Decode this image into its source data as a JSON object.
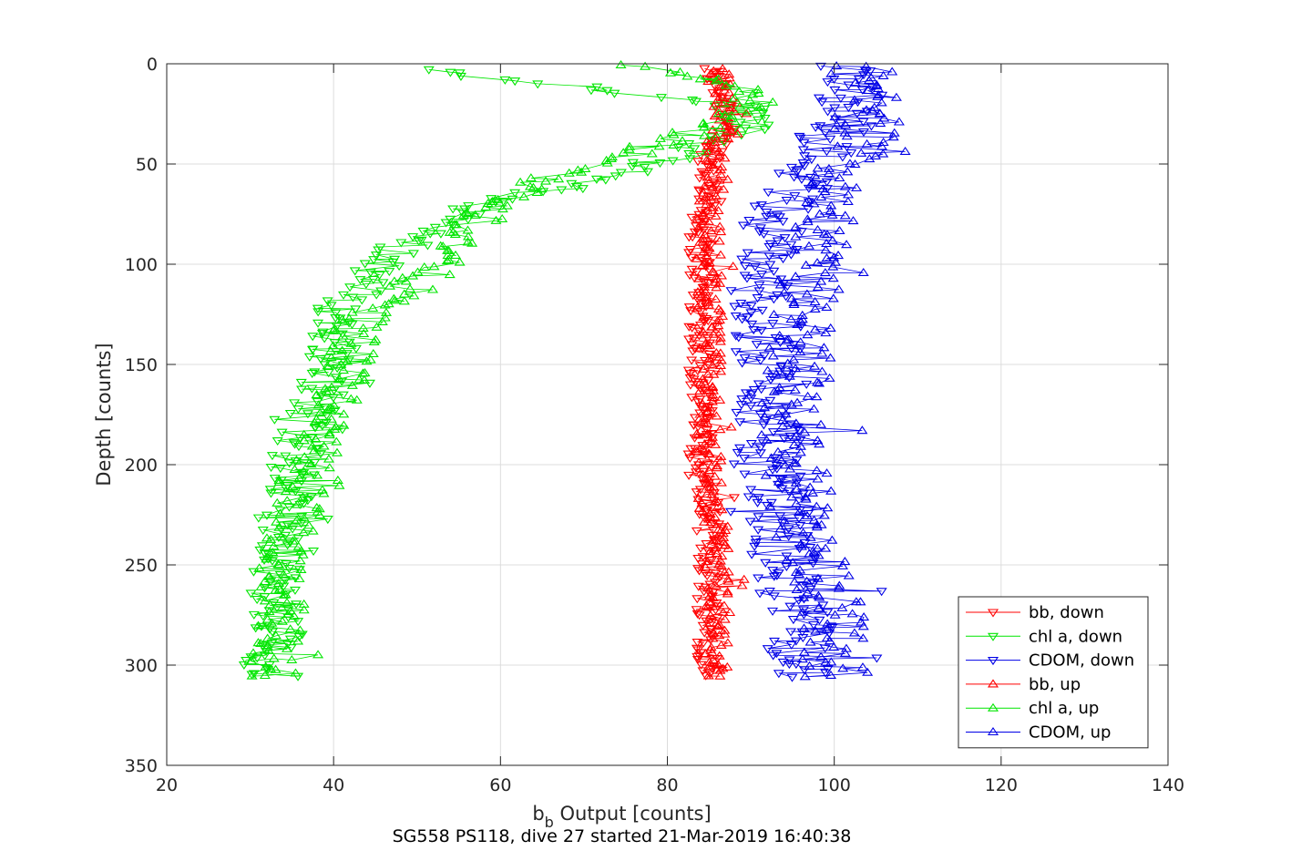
{
  "chart_data": {
    "type": "line",
    "title": "SG558 PS118, dive 27 started 21-Mar-2019 16:40:38",
    "xlabel_main": "b",
    "xlabel_sub": "b",
    "xlabel_rest": " Output [counts]",
    "ylabel": "Depth [counts]",
    "xlim": [
      20,
      140
    ],
    "ylim": [
      0,
      350
    ],
    "y_reversed": true,
    "grid": true,
    "xticks": [
      "20",
      "40",
      "60",
      "80",
      "100",
      "120",
      "140"
    ],
    "yticks": [
      "0",
      "50",
      "100",
      "150",
      "200",
      "250",
      "300",
      "350"
    ],
    "legend_position": "bottom-right",
    "colors": {
      "red": "#ff0000",
      "green": "#00e600",
      "blue": "#0000e6"
    },
    "series": [
      {
        "name": "bb, down",
        "color": "#ff0000",
        "marker": "down",
        "depth": [
          2,
          10,
          20,
          30,
          40,
          50,
          60,
          70,
          80,
          90,
          100,
          110,
          120,
          130,
          140,
          150,
          160,
          170,
          180,
          190,
          200,
          210,
          220,
          230,
          240,
          250,
          260,
          270,
          280,
          290,
          300,
          306
        ],
        "value": [
          85,
          86,
          87,
          87,
          86,
          85,
          85,
          85,
          84,
          84,
          84,
          84,
          84,
          84,
          84,
          84,
          84,
          84,
          84,
          84,
          84,
          84,
          85,
          85,
          85,
          85,
          85,
          85,
          85,
          85,
          85,
          86
        ],
        "spread": 1.5
      },
      {
        "name": "chl a, down",
        "color": "#00e600",
        "marker": "down",
        "depth": [
          3,
          5,
          8,
          14,
          20,
          30,
          40,
          50,
          60,
          70,
          80,
          90,
          100,
          110,
          120,
          130,
          140,
          150,
          160,
          170,
          180,
          190,
          200,
          210,
          220,
          230,
          240,
          250,
          260,
          270,
          280,
          290,
          300,
          306
        ],
        "value": [
          50,
          55,
          62,
          75,
          88,
          92,
          85,
          78,
          70,
          57,
          53,
          49,
          46,
          44,
          41,
          40,
          40,
          40,
          39,
          38,
          37,
          36,
          35,
          35,
          34,
          34,
          33,
          33,
          33,
          33,
          33,
          33,
          32,
          33
        ],
        "spread": 3
      },
      {
        "name": "CDOM, down",
        "color": "#0000e6",
        "marker": "down",
        "depth": [
          2,
          10,
          20,
          30,
          40,
          50,
          60,
          70,
          80,
          90,
          100,
          110,
          120,
          130,
          140,
          150,
          160,
          170,
          180,
          190,
          200,
          210,
          220,
          230,
          240,
          250,
          260,
          270,
          280,
          290,
          300,
          306
        ],
        "value": [
          101,
          102,
          102,
          101,
          99,
          98,
          96,
          94,
          93,
          92,
          92,
          91,
          91,
          92,
          92,
          92,
          92,
          92,
          92,
          92,
          92,
          92,
          93,
          93,
          94,
          94,
          95,
          95,
          96,
          96,
          96,
          97
        ],
        "spread": 4
      },
      {
        "name": "bb, up",
        "color": "#ff0000",
        "marker": "up",
        "depth": [
          2,
          10,
          20,
          30,
          40,
          50,
          60,
          70,
          80,
          90,
          100,
          110,
          120,
          130,
          140,
          150,
          160,
          170,
          180,
          190,
          200,
          210,
          220,
          230,
          240,
          250,
          260,
          270,
          280,
          290,
          300,
          306
        ],
        "value": [
          86,
          86,
          87,
          86,
          86,
          86,
          86,
          85,
          85,
          85,
          85,
          85,
          85,
          85,
          85,
          85,
          85,
          85,
          85,
          85,
          85,
          85,
          85,
          86,
          86,
          86,
          86,
          86,
          86,
          86,
          86,
          86
        ],
        "spread": 1.5
      },
      {
        "name": "chl a, up",
        "color": "#00e600",
        "marker": "up",
        "depth": [
          1,
          5,
          10,
          20,
          30,
          40,
          50,
          60,
          70,
          80,
          90,
          100,
          110,
          120,
          130,
          140,
          150,
          160,
          170,
          180,
          190,
          200,
          210,
          220,
          230,
          240,
          250,
          260,
          270,
          280,
          290,
          300,
          306
        ],
        "value": [
          76,
          83,
          88,
          90,
          85,
          79,
          72,
          64,
          60,
          57,
          55,
          52,
          50,
          46,
          43,
          42,
          42,
          41,
          40,
          39,
          38,
          37,
          36,
          36,
          35,
          35,
          34,
          34,
          34,
          34,
          33,
          33,
          33
        ],
        "spread": 3
      },
      {
        "name": "CDOM, up",
        "color": "#0000e6",
        "marker": "up",
        "depth": [
          1,
          10,
          20,
          30,
          40,
          50,
          60,
          70,
          80,
          90,
          100,
          110,
          120,
          130,
          140,
          150,
          160,
          170,
          180,
          190,
          200,
          210,
          220,
          230,
          240,
          250,
          260,
          270,
          280,
          290,
          300,
          306
        ],
        "value": [
          103,
          104,
          104,
          104,
          103,
          102,
          101,
          100,
          99,
          98,
          97,
          97,
          96,
          96,
          96,
          96,
          96,
          95,
          95,
          95,
          95,
          96,
          96,
          97,
          97,
          98,
          99,
          100,
          100,
          100,
          100,
          100
        ],
        "spread": 4
      }
    ]
  }
}
